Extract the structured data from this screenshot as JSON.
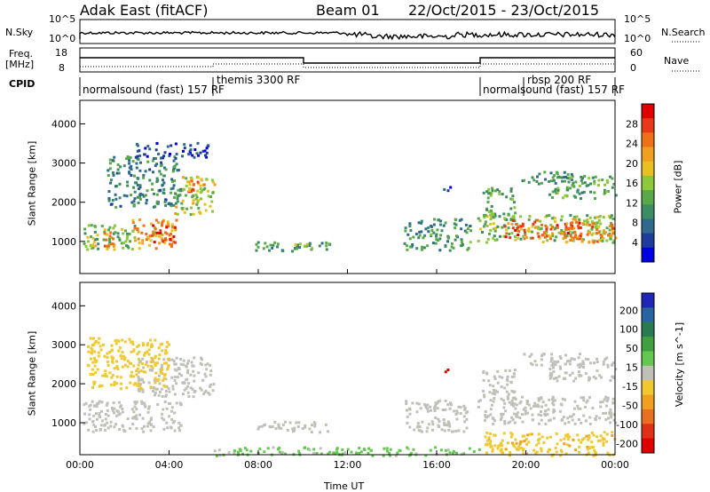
{
  "header": {
    "station": "Adak East (fitACF)",
    "beam": "Beam 01",
    "date_range": "22/Oct/2015 - 23/Oct/2015"
  },
  "summary_panels": {
    "nsky_label": "N.Sky",
    "nsearch_label": "N.Search",
    "nsky_ticks": [
      "10^5",
      "10^0"
    ],
    "nsearch_ticks": [
      "10^5",
      "10^0"
    ],
    "freq_label_line1": "Freq.",
    "freq_label_line2": "[MHz]",
    "freq_ticks": [
      "18",
      "8"
    ],
    "nave_label": "Nave",
    "nave_ticks": [
      "60",
      "0"
    ],
    "cpid_label": "CPID",
    "cpid_segments": [
      {
        "label": "normalsound (fast) 157 RF",
        "start_hour": 0,
        "end_hour": 6
      },
      {
        "label": "themis 3300 RF",
        "start_hour": 6,
        "end_hour": 18
      },
      {
        "label": "normalsound (fast) 157 RF",
        "start_hour": 18,
        "end_hour": 24
      },
      {
        "label": "rbsp 200 RF",
        "start_hour": 20,
        "end_hour": 24
      }
    ]
  },
  "colors": {
    "power_scale": [
      "#0000e0",
      "#1e3c9a",
      "#2f6a8c",
      "#3c8c64",
      "#5aa84a",
      "#8cc83c",
      "#e8c020",
      "#f0a020",
      "#f07018",
      "#e83818",
      "#e00000"
    ],
    "velocity_scale": [
      "#1e28b4",
      "#2a64a0",
      "#287a50",
      "#40a040",
      "#64c850",
      "#c0c0b8",
      "#f0c830",
      "#f0a020",
      "#e87020",
      "#e03018",
      "#e00000"
    ]
  },
  "chart_data": [
    {
      "type": "heatmap",
      "panel": "power",
      "xlabel": "Time UT",
      "ylabel": "Slant Range [km]",
      "xlim": [
        0,
        24
      ],
      "ylim": [
        180,
        4600
      ],
      "x_ticks": [
        "00:00",
        "04:00",
        "08:00",
        "12:00",
        "16:00",
        "20:00",
        "00:00"
      ],
      "y_ticks": [
        "1000",
        "2000",
        "3000",
        "4000"
      ],
      "colorbar_label": "Power [dB]",
      "colorbar_ticks": [
        "4",
        "8",
        "12",
        "16",
        "20",
        "24",
        "28"
      ],
      "colorbar_range": [
        0,
        30
      ],
      "regions": [
        {
          "t0": 0.1,
          "t1": 2.5,
          "r0": 800,
          "r1": 1450,
          "level": 13
        },
        {
          "t0": 2.3,
          "t1": 4.3,
          "r0": 850,
          "r1": 1600,
          "level": 20
        },
        {
          "t0": 3.2,
          "t1": 4.4,
          "r0": 950,
          "r1": 1450,
          "level": 26
        },
        {
          "t0": 0.5,
          "t1": 1.6,
          "r0": 900,
          "r1": 1300,
          "level": 22
        },
        {
          "t0": 4.2,
          "t1": 6.0,
          "r0": 1700,
          "r1": 2700,
          "level": 16
        },
        {
          "t0": 4.6,
          "t1": 5.6,
          "r0": 2300,
          "r1": 2600,
          "level": 22
        },
        {
          "t0": 1.2,
          "t1": 4.5,
          "r0": 1900,
          "r1": 3200,
          "level": 9
        },
        {
          "t0": 2.5,
          "t1": 5.8,
          "r0": 3150,
          "r1": 3550,
          "level": 4
        },
        {
          "t0": 7.8,
          "t1": 11.2,
          "r0": 780,
          "r1": 1020,
          "level": 10
        },
        {
          "t0": 9.5,
          "t1": 10.5,
          "r0": 800,
          "r1": 1000,
          "level": 14
        },
        {
          "t0": 14.5,
          "t1": 17.5,
          "r0": 800,
          "r1": 1600,
          "level": 10
        },
        {
          "t0": 16.2,
          "t1": 16.6,
          "r0": 2300,
          "r1": 2500,
          "level": 6
        },
        {
          "t0": 17.8,
          "t1": 24.0,
          "r0": 1000,
          "r1": 1700,
          "level": 14
        },
        {
          "t0": 19.0,
          "t1": 22.5,
          "r0": 1100,
          "r1": 1600,
          "level": 24
        },
        {
          "t0": 21.5,
          "t1": 24.0,
          "r0": 1000,
          "r1": 1500,
          "level": 22
        },
        {
          "t0": 18.0,
          "t1": 19.5,
          "r0": 1600,
          "r1": 2400,
          "level": 12
        },
        {
          "t0": 21.0,
          "t1": 24.0,
          "r0": 2100,
          "r1": 2700,
          "level": 12
        },
        {
          "t0": 19.8,
          "t1": 22.5,
          "r0": 2500,
          "r1": 2800,
          "level": 9
        }
      ]
    },
    {
      "type": "heatmap",
      "panel": "velocity",
      "xlabel": "Time UT",
      "ylabel": "Slant Range [km]",
      "xlim": [
        0,
        24
      ],
      "ylim": [
        180,
        4600
      ],
      "x_ticks": [
        "00:00",
        "04:00",
        "08:00",
        "12:00",
        "16:00",
        "20:00",
        "00:00"
      ],
      "y_ticks": [
        "1000",
        "2000",
        "3000",
        "4000"
      ],
      "colorbar_label": "Velocity [m s^-1]",
      "colorbar_ticks": [
        "200",
        "100",
        "50",
        "15",
        "-15",
        "-50",
        "-100",
        "-200"
      ],
      "colorbar_range": [
        -250,
        250
      ],
      "regions": [
        {
          "t0": 0.1,
          "t1": 4.5,
          "r0": 800,
          "r1": 1600,
          "level": 0
        },
        {
          "t0": 2.5,
          "t1": 6.0,
          "r0": 1700,
          "r1": 2700,
          "level": 0
        },
        {
          "t0": 0.3,
          "t1": 4.0,
          "r0": 1900,
          "r1": 3200,
          "level": -40
        },
        {
          "t0": 7.8,
          "t1": 11.2,
          "r0": 780,
          "r1": 1050,
          "level": 0
        },
        {
          "t0": 14.5,
          "t1": 17.5,
          "r0": 800,
          "r1": 1600,
          "level": 0
        },
        {
          "t0": 16.3,
          "t1": 16.6,
          "r0": 2300,
          "r1": 2500,
          "level": -220
        },
        {
          "t0": 17.8,
          "t1": 24.0,
          "r0": 1000,
          "r1": 1700,
          "level": 0
        },
        {
          "t0": 18.0,
          "t1": 19.5,
          "r0": 1600,
          "r1": 2400,
          "level": 0
        },
        {
          "t0": 21.0,
          "t1": 24.0,
          "r0": 2100,
          "r1": 2700,
          "level": 0
        },
        {
          "t0": 19.8,
          "t1": 22.5,
          "r0": 2500,
          "r1": 2800,
          "level": 0
        },
        {
          "t0": 6.0,
          "t1": 18.0,
          "r0": 180,
          "r1": 400,
          "level": 30
        },
        {
          "t0": 18.0,
          "t1": 24.0,
          "r0": 180,
          "r1": 800,
          "level": -60
        }
      ]
    }
  ]
}
